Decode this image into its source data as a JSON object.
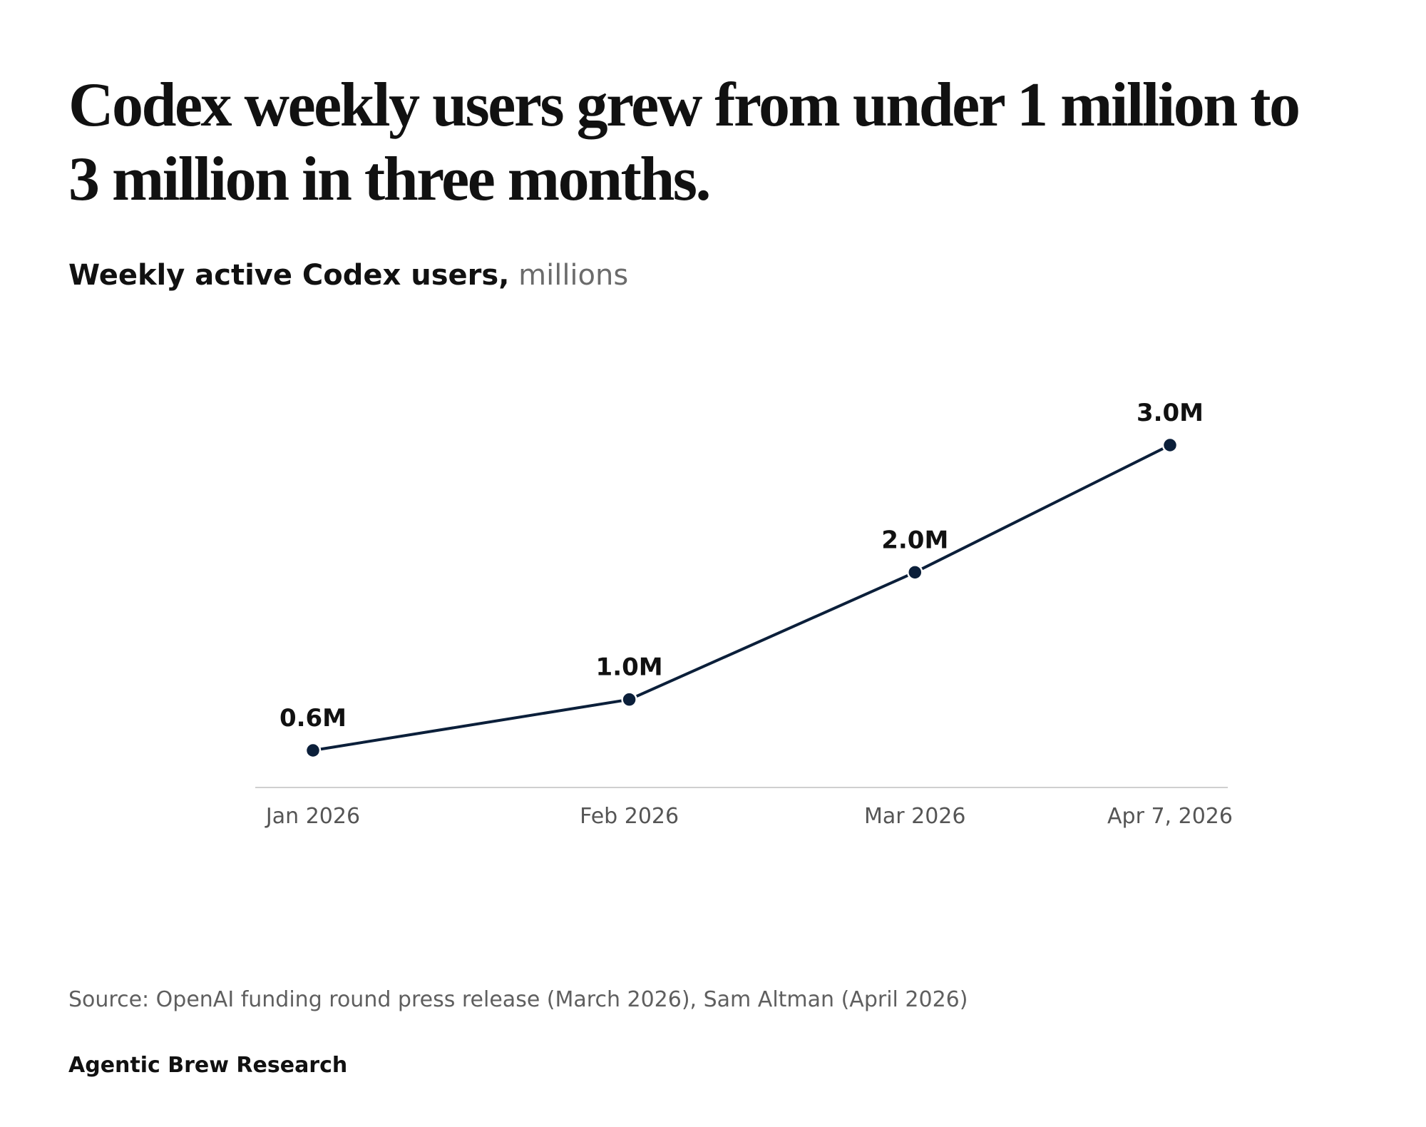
{
  "headline": "Codex weekly users grew from under 1 million to 3 million in three months.",
  "subtitle": {
    "metric": "Weekly active Codex users,",
    "unit": "millions"
  },
  "source": "Source: OpenAI funding round press release (March 2026), Sam Altman (April 2026)",
  "brand": "Agentic Brew Research",
  "colors": {
    "line": "#0b1f3a",
    "axis": "#cfcfcf",
    "text": "#111111",
    "muted": "#5f5f5f"
  },
  "chart_data": {
    "type": "line",
    "title": "Weekly active Codex users, millions",
    "xlabel": "",
    "ylabel": "",
    "categories": [
      "Jan 2026",
      "Feb 2026",
      "Mar 2026",
      "Apr 7, 2026"
    ],
    "series": [
      {
        "name": "Weekly active Codex users",
        "values": [
          0.6,
          1.0,
          2.0,
          3.0
        ],
        "labels": [
          "0.6M",
          "1.0M",
          "2.0M",
          "3.0M"
        ]
      }
    ],
    "x_day_offsets": [
      0,
      31,
      59,
      84
    ],
    "ylim": [
      0,
      3.0
    ],
    "grid": false,
    "legend": "none"
  }
}
